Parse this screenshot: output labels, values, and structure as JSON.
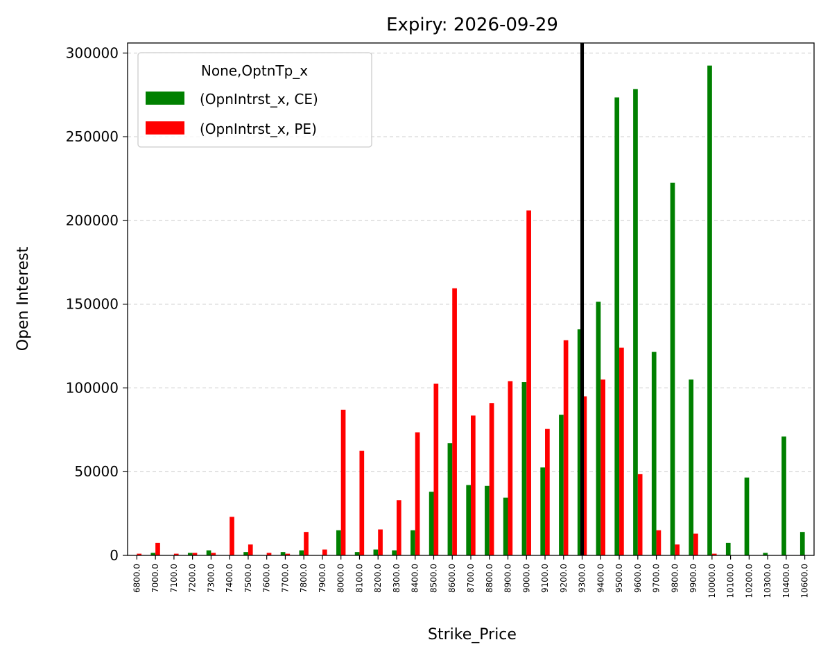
{
  "chart_data": {
    "type": "bar",
    "title": "Expiry: 2026-09-29",
    "xlabel": "Strike_Price",
    "ylabel": "Open Interest",
    "ylim": [
      0,
      306000
    ],
    "yticks": [
      0,
      50000,
      100000,
      150000,
      200000,
      250000,
      300000
    ],
    "ytick_labels": [
      "0",
      "50000",
      "100000",
      "150000",
      "200000",
      "250000",
      "300000"
    ],
    "grid": "y-dashed",
    "legend": {
      "title": "None,OptnTp_x",
      "placement": "top-left"
    },
    "categories": [
      "6800.0",
      "7000.0",
      "7100.0",
      "7200.0",
      "7300.0",
      "7400.0",
      "7500.0",
      "7600.0",
      "7700.0",
      "7800.0",
      "7900.0",
      "8000.0",
      "8100.0",
      "8200.0",
      "8300.0",
      "8400.0",
      "8500.0",
      "8600.0",
      "8700.0",
      "8800.0",
      "8900.0",
      "9000.0",
      "9100.0",
      "9200.0",
      "9300.0",
      "9400.0",
      "9500.0",
      "9600.0",
      "9700.0",
      "9800.0",
      "9900.0",
      "10000.0",
      "10100.0",
      "10200.0",
      "10300.0",
      "10400.0",
      "10600.0"
    ],
    "series": [
      {
        "name": "(OpnIntrst_x, CE)",
        "color": "#008000",
        "values": [
          0,
          1500,
          0,
          1500,
          3000,
          0,
          2000,
          0,
          2000,
          3000,
          0,
          15000,
          2000,
          3500,
          3000,
          15000,
          38000,
          67000,
          42000,
          41500,
          34500,
          103500,
          52500,
          84000,
          135000,
          151500,
          273500,
          278500,
          121500,
          222500,
          105000,
          292500,
          7500,
          46500,
          1500,
          71000,
          14000
        ]
      },
      {
        "name": "(OpnIntrst_x, PE)",
        "color": "#ff0000",
        "values": [
          1000,
          7500,
          1000,
          1500,
          1500,
          23000,
          6500,
          1500,
          1000,
          14000,
          3500,
          87000,
          62500,
          15500,
          33000,
          73500,
          102500,
          159500,
          83500,
          91000,
          104000,
          206000,
          75500,
          128500,
          95000,
          105000,
          124000,
          48500,
          15000,
          6500,
          13000,
          1000,
          0,
          0,
          0,
          0,
          0
        ]
      }
    ],
    "marker_line": {
      "category": "9300.0",
      "color": "#000000"
    }
  }
}
